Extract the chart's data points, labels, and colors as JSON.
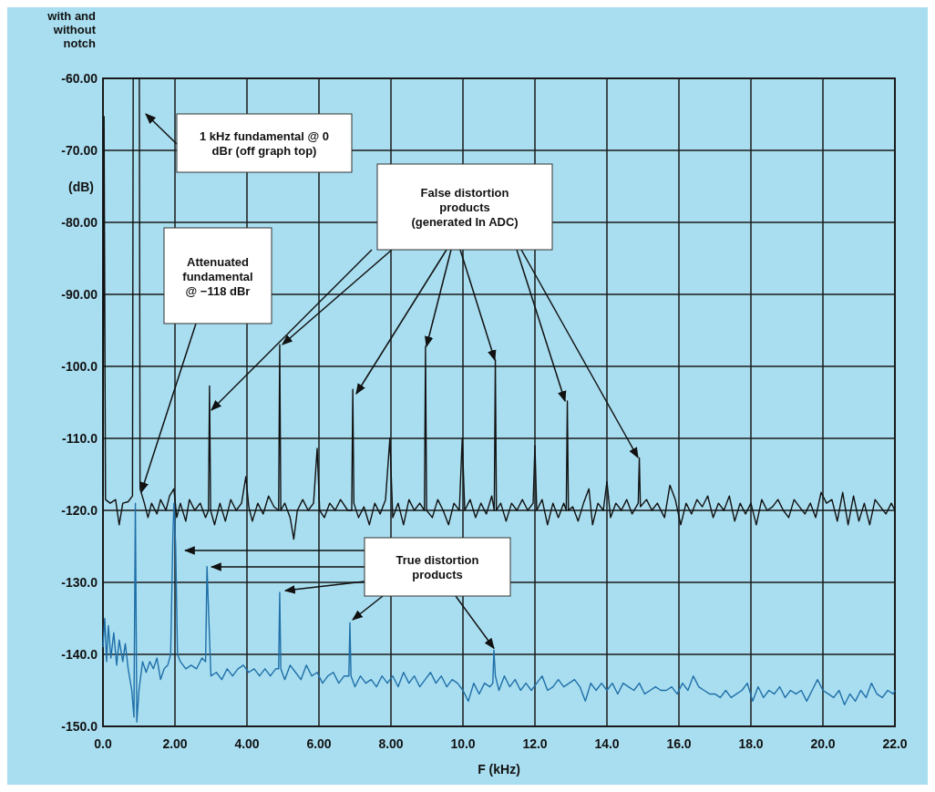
{
  "chart_data": {
    "type": "line",
    "title": "with and without notch",
    "xlabel": "F (kHz)",
    "ylabel": "(dB)",
    "xlim": [
      0,
      22
    ],
    "xticks": [
      {
        "value": 0,
        "label": "0.0"
      },
      {
        "value": 2,
        "label": "2.00"
      },
      {
        "value": 4,
        "label": "4.00"
      },
      {
        "value": 6,
        "label": "6.00"
      },
      {
        "value": 8,
        "label": "8.00"
      },
      {
        "value": 10,
        "label": "10.0"
      },
      {
        "value": 12,
        "label": "12.0"
      },
      {
        "value": 14,
        "label": "14.0"
      },
      {
        "value": 16,
        "label": "16.0"
      },
      {
        "value": 18,
        "label": "18.0"
      },
      {
        "value": 20,
        "label": "20.0"
      },
      {
        "value": 22,
        "label": "22.0"
      }
    ],
    "ylim": [
      -150,
      -60
    ],
    "yticks": [
      {
        "value": -60,
        "label": "-60.00"
      },
      {
        "value": -70,
        "label": "-70.00"
      },
      {
        "value": -80,
        "label": "-80.00"
      },
      {
        "value": -90,
        "label": "-90.00"
      },
      {
        "value": -100,
        "label": "-100.0"
      },
      {
        "value": -110,
        "label": "-110.0"
      },
      {
        "value": -120,
        "label": "-120.0"
      },
      {
        "value": -130,
        "label": "-130.0"
      },
      {
        "value": -140,
        "label": "-140.0"
      },
      {
        "value": -150,
        "label": "-150.0"
      }
    ],
    "grid": true,
    "marker": "none",
    "line_style": "solid",
    "annotations": [
      "1 kHz fundamental @ 0 dBr (off graph top)",
      "Attenuated fundamental @ −118 dBr",
      "False distortion products (generated In ADC)",
      {
        "text": "True distortion products",
        "x": 10.86,
        "y": -139.4
      }
    ],
    "series": [
      {
        "color": "#111111",
        "x": [
          0,
          0.03,
          0.07,
          0.2,
          0.35,
          0.45,
          0.55,
          0.7,
          0.82,
          0.84,
          1.01,
          1.03,
          1.15,
          1.25,
          1.35,
          1.5,
          1.6,
          1.75,
          1.85,
          1.97,
          2.05,
          2.15,
          2.3,
          2.4,
          2.55,
          2.7,
          2.85,
          2.93,
          2.96,
          2.99,
          3.1,
          3.25,
          3.4,
          3.55,
          3.7,
          3.85,
          3.97,
          4.05,
          4.15,
          4.3,
          4.45,
          4.6,
          4.75,
          4.88,
          4.91,
          4.94,
          5.05,
          5.2,
          5.3,
          5.4,
          5.55,
          5.7,
          5.85,
          5.95,
          6.02,
          6.15,
          6.3,
          6.45,
          6.6,
          6.8,
          6.91,
          6.94,
          6.97,
          7.1,
          7.25,
          7.4,
          7.55,
          7.7,
          7.85,
          7.97,
          8.05,
          8.2,
          8.35,
          8.5,
          8.65,
          8.8,
          8.93,
          8.96,
          8.99,
          9.15,
          9.3,
          9.45,
          9.6,
          9.75,
          9.9,
          9.98,
          10.05,
          10.2,
          10.35,
          10.5,
          10.65,
          10.8,
          10.87,
          10.9,
          10.93,
          11.05,
          11.2,
          11.35,
          11.5,
          11.65,
          11.8,
          11.95,
          12,
          12.05,
          12.2,
          12.35,
          12.5,
          12.65,
          12.8,
          12.87,
          12.9,
          12.93,
          13.05,
          13.2,
          13.35,
          13.5,
          13.6,
          13.75,
          13.9,
          14,
          14.1,
          14.25,
          14.4,
          14.55,
          14.7,
          14.87,
          14.9,
          14.93,
          15.1,
          15.25,
          15.4,
          15.6,
          15.75,
          15.9,
          16.05,
          16.2,
          16.35,
          16.5,
          16.65,
          16.8,
          16.95,
          17.1,
          17.25,
          17.4,
          17.55,
          17.7,
          17.85,
          18,
          18.15,
          18.3,
          18.45,
          18.6,
          18.75,
          18.9,
          19.05,
          19.2,
          19.35,
          19.5,
          19.65,
          19.8,
          19.95,
          20.1,
          20.25,
          20.4,
          20.55,
          20.7,
          20.85,
          21,
          21.15,
          21.3,
          21.45,
          21.6,
          21.75,
          21.9,
          22
        ],
        "values": [
          -118,
          -65.3,
          -118.5,
          -119,
          -118.5,
          -122,
          -119,
          -118.8,
          -118,
          -60,
          -60,
          -117,
          -119,
          -121,
          -119,
          -120.5,
          -118.5,
          -120,
          -118,
          -117,
          -121,
          -119,
          -121.5,
          -118.5,
          -120,
          -119,
          -121,
          -120,
          -102.7,
          -120,
          -122,
          -119,
          -121.5,
          -118.5,
          -120,
          -119,
          -115.3,
          -119.5,
          -121.5,
          -119,
          -120.5,
          -118,
          -119.5,
          -120,
          -97,
          -120,
          -119,
          -121,
          -124,
          -120,
          -118.5,
          -120,
          -119,
          -111.4,
          -120,
          -121,
          -119,
          -120,
          -118.5,
          -120,
          -120,
          -103.2,
          -119,
          -121,
          -119.5,
          -122,
          -119,
          -120.5,
          -118.5,
          -110,
          -121,
          -119,
          -122,
          -118.5,
          -120,
          -119,
          -120,
          -97.2,
          -120,
          -121,
          -118.5,
          -120,
          -122,
          -119,
          -120,
          -110,
          -120,
          -118.5,
          -121,
          -119,
          -120.5,
          -118,
          -120,
          -99.1,
          -120,
          -119,
          -121.5,
          -119,
          -120,
          -118.5,
          -120,
          -119,
          -111,
          -120,
          -118.5,
          -122,
          -119,
          -121,
          -119,
          -120,
          -104.8,
          -120,
          -119.5,
          -121.5,
          -119,
          -117,
          -122,
          -119,
          -120,
          -116,
          -121,
          -119,
          -120,
          -118.5,
          -120.5,
          -119,
          -112.7,
          -119.5,
          -118.5,
          -120,
          -119,
          -121,
          -116.5,
          -118.5,
          -122,
          -119,
          -120.5,
          -118.5,
          -119.5,
          -118,
          -121,
          -119,
          -120,
          -118,
          -121.5,
          -119,
          -120.5,
          -119,
          -122,
          -118.5,
          -120,
          -119.5,
          -118.5,
          -120,
          -121,
          -118.5,
          -119.5,
          -120.5,
          -119,
          -121,
          -117.5,
          -119,
          -118.5,
          -121.5,
          -117.5,
          -122,
          -118,
          -121.5,
          -119,
          -122,
          -118.5,
          -119.5,
          -120.5,
          -119,
          -120
        ]
      },
      {
        "color": "#1f6fa8",
        "x": [
          0,
          0.05,
          0.1,
          0.15,
          0.22,
          0.3,
          0.38,
          0.45,
          0.55,
          0.62,
          0.7,
          0.8,
          0.86,
          0.9,
          0.94,
          1,
          1.1,
          1.2,
          1.3,
          1.4,
          1.5,
          1.6,
          1.7,
          1.8,
          1.88,
          1.94,
          1.97,
          2.02,
          2.07,
          2.15,
          2.3,
          2.45,
          2.6,
          2.75,
          2.85,
          2.89,
          2.94,
          3,
          3.15,
          3.3,
          3.45,
          3.6,
          3.75,
          3.9,
          4.05,
          4.2,
          4.35,
          4.5,
          4.65,
          4.8,
          4.88,
          4.91,
          4.94,
          5.05,
          5.2,
          5.35,
          5.5,
          5.65,
          5.8,
          5.95,
          6.1,
          6.25,
          6.4,
          6.55,
          6.7,
          6.83,
          6.86,
          6.89,
          7,
          7.15,
          7.3,
          7.45,
          7.6,
          7.75,
          7.9,
          8.05,
          8.2,
          8.35,
          8.5,
          8.65,
          8.8,
          8.95,
          9.1,
          9.25,
          9.4,
          9.55,
          9.7,
          9.85,
          10,
          10.15,
          10.3,
          10.45,
          10.6,
          10.75,
          10.83,
          10.86,
          10.9,
          11,
          11.15,
          11.3,
          11.45,
          11.6,
          11.75,
          11.9,
          12.05,
          12.2,
          12.35,
          12.5,
          12.65,
          12.8,
          12.95,
          13.1,
          13.25,
          13.4,
          13.55,
          13.7,
          13.85,
          14,
          14.15,
          14.3,
          14.45,
          14.6,
          14.75,
          14.9,
          15.05,
          15.2,
          15.35,
          15.5,
          15.65,
          15.8,
          15.95,
          16.1,
          16.25,
          16.4,
          16.55,
          16.7,
          16.85,
          17,
          17.15,
          17.3,
          17.45,
          17.6,
          17.75,
          17.9,
          18.05,
          18.2,
          18.35,
          18.5,
          18.65,
          18.8,
          18.95,
          19.1,
          19.25,
          19.4,
          19.55,
          19.7,
          19.85,
          20,
          20.15,
          20.3,
          20.45,
          20.6,
          20.75,
          20.9,
          21.05,
          21.2,
          21.35,
          21.5,
          21.65,
          21.8,
          21.95,
          22
        ],
        "values": [
          -139,
          -135,
          -141,
          -136,
          -140.5,
          -137,
          -141.5,
          -138,
          -141,
          -138.5,
          -142,
          -145,
          -148.7,
          -119,
          -149.4,
          -145,
          -141,
          -142.5,
          -141,
          -142,
          -140.5,
          -143.5,
          -142,
          -141.5,
          -140,
          -124,
          -119,
          -125,
          -140,
          -141,
          -142,
          -141.5,
          -142,
          -140.5,
          -141,
          -127.8,
          -135,
          -143,
          -142.5,
          -143.5,
          -142,
          -143,
          -142,
          -141.5,
          -142.5,
          -142,
          -143,
          -142,
          -143,
          -142,
          -142,
          -131.4,
          -142,
          -143.5,
          -141.5,
          -142.5,
          -143.5,
          -141.5,
          -143,
          -142.5,
          -144,
          -143,
          -142.5,
          -144,
          -143,
          -143,
          -135.6,
          -143,
          -144.5,
          -143,
          -144,
          -143.5,
          -144.5,
          -143,
          -144,
          -143,
          -144.5,
          -142.5,
          -144,
          -143,
          -144.5,
          -143.5,
          -142.5,
          -144,
          -143,
          -144.5,
          -143.5,
          -144,
          -145,
          -146.5,
          -144,
          -145.5,
          -144,
          -144.5,
          -144,
          -139.4,
          -143,
          -145,
          -143,
          -144.5,
          -143.5,
          -145,
          -144,
          -145,
          -144,
          -143,
          -145,
          -144.5,
          -143.5,
          -144.5,
          -144,
          -143.5,
          -144.5,
          -146.5,
          -144,
          -145,
          -144,
          -145,
          -144,
          -145.5,
          -144,
          -144.5,
          -145,
          -144,
          -145.5,
          -145,
          -144.5,
          -145,
          -145,
          -144.5,
          -145.5,
          -144,
          -145,
          -143,
          -144.5,
          -145,
          -145.5,
          -145.5,
          -146,
          -145,
          -146,
          -145.5,
          -145,
          -144,
          -146.5,
          -144.5,
          -146,
          -145,
          -145.5,
          -144.5,
          -146,
          -145,
          -145.5,
          -145,
          -146.5,
          -145,
          -143.5,
          -145,
          -145.5,
          -146,
          -145,
          -147,
          -145.5,
          -146.5,
          -145,
          -146,
          -144,
          -145.5,
          -146,
          -145,
          -145.5,
          -145
        ]
      }
    ]
  }
}
